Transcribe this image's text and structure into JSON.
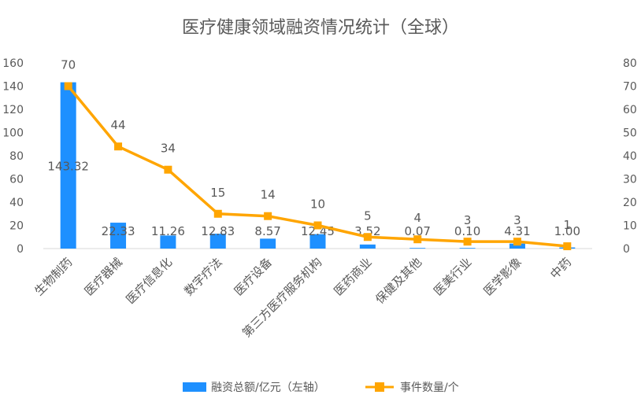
{
  "chart_data": {
    "type": "bar",
    "title": "医疗健康领域融资情况统计（全球）",
    "categories": [
      "生物制药",
      "医疗器械",
      "医疗信息化",
      "数字疗法",
      "医疗设备",
      "第三方医疗服务机构",
      "医药商业",
      "保健及其他",
      "医美行业",
      "医学影像",
      "中药"
    ],
    "series": [
      {
        "name": "融资总额/亿元（左轴）",
        "type": "bar",
        "axis": "left",
        "values": [
          143.32,
          22.33,
          11.26,
          12.83,
          8.57,
          12.45,
          3.52,
          0.07,
          0.1,
          4.31,
          1.0
        ],
        "labels": [
          "143.32",
          "22.33",
          "11.26",
          "12.83",
          "8.57",
          "12.45",
          "3.52",
          "0.07",
          "0.10",
          "4.31",
          "1.00"
        ],
        "color": "#1E90FF"
      },
      {
        "name": "事件数量/个",
        "type": "line",
        "axis": "right",
        "values": [
          70,
          44,
          34,
          15,
          14,
          10,
          5,
          4,
          3,
          3,
          1
        ],
        "labels": [
          "70",
          "44",
          "34",
          "15",
          "14",
          "10",
          "5",
          "4",
          "3",
          "3",
          "1"
        ],
        "color": "#FFA500"
      }
    ],
    "y_left": {
      "min": 0,
      "max": 160,
      "ticks": [
        "0",
        "20",
        "40",
        "60",
        "80",
        "100",
        "120",
        "140",
        "160"
      ]
    },
    "y_right": {
      "min": 0,
      "max": 80,
      "ticks": [
        "0",
        "10",
        "20",
        "30",
        "40",
        "50",
        "60",
        "70",
        "80"
      ]
    },
    "grid": false,
    "legend_position": "bottom"
  }
}
